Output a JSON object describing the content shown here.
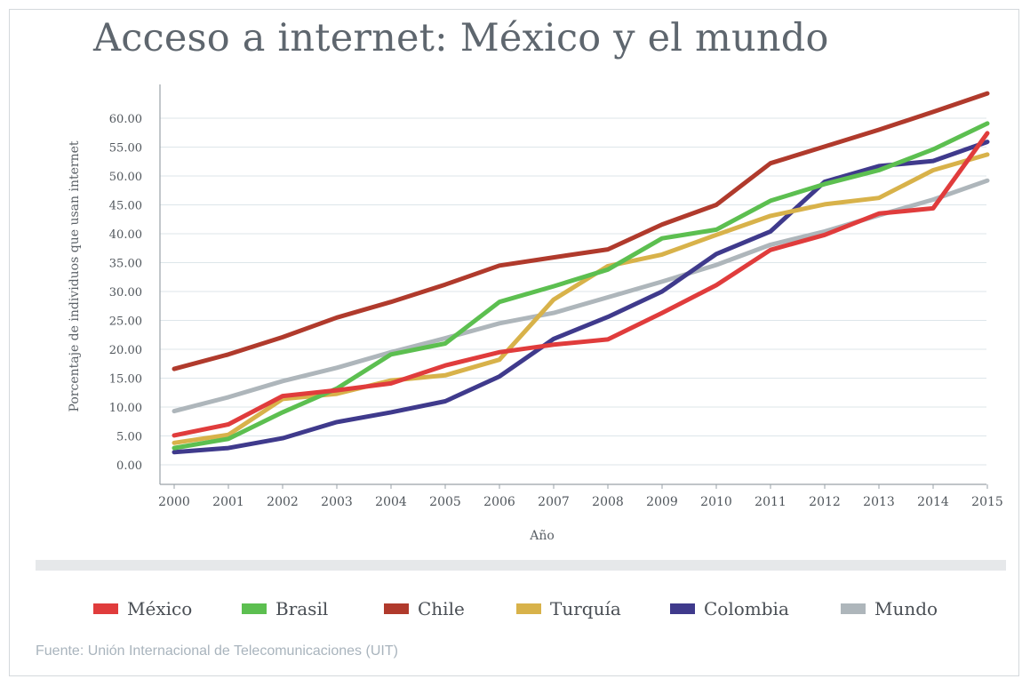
{
  "title": "Acceso a internet: México y el mundo",
  "source": "Fuente: Unión Internacional de Telecomunicaciones (UIT)",
  "chart_data": {
    "type": "line",
    "title": "Acceso a internet: México y el mundo",
    "xlabel": "Año",
    "ylabel": "Porcentaje de individuos que usan internet",
    "x": [
      "2000",
      "2001",
      "2002",
      "2003",
      "2004",
      "2005",
      "2006",
      "2007",
      "2008",
      "2009",
      "2010",
      "2011",
      "2012",
      "2013",
      "2014",
      "2015"
    ],
    "y_ticks": [
      "0.00",
      "5.00",
      "10.00",
      "15.00",
      "20.00",
      "25.00",
      "30.00",
      "35.00",
      "40.00",
      "45.00",
      "50.00",
      "55.00",
      "60.00"
    ],
    "ylim": [
      0,
      60
    ],
    "grid": "horizontal",
    "legend_position": "bottom",
    "series": [
      {
        "name": "México",
        "color": "#e03c3c",
        "values": [
          5.1,
          7.0,
          11.9,
          12.9,
          14.1,
          17.2,
          19.5,
          20.8,
          21.7,
          26.3,
          31.1,
          37.2,
          39.8,
          43.5,
          44.4,
          57.4
        ]
      },
      {
        "name": "Brasil",
        "color": "#5cbf50",
        "values": [
          2.9,
          4.5,
          9.1,
          13.2,
          19.1,
          21.0,
          28.2,
          30.9,
          33.8,
          39.2,
          40.7,
          45.7,
          48.6,
          51.0,
          54.6,
          59.1
        ]
      },
      {
        "name": "Chile",
        "color": "#b03a2c",
        "values": [
          16.6,
          19.1,
          22.1,
          25.5,
          28.2,
          31.2,
          34.5,
          35.9,
          37.3,
          41.6,
          45.0,
          52.2,
          55.1,
          58.0,
          61.1,
          64.3
        ]
      },
      {
        "name": "Turquía",
        "color": "#d8b24a",
        "values": [
          3.8,
          5.2,
          11.4,
          12.3,
          14.6,
          15.5,
          18.2,
          28.6,
          34.4,
          36.4,
          39.8,
          43.1,
          45.1,
          46.2,
          51.0,
          53.7
        ]
      },
      {
        "name": "Colombia",
        "color": "#3f3a8c",
        "values": [
          2.2,
          2.9,
          4.6,
          7.4,
          9.1,
          11.0,
          15.3,
          21.8,
          25.6,
          30.0,
          36.5,
          40.4,
          49.0,
          51.7,
          52.6,
          55.9
        ]
      },
      {
        "name": "Mundo",
        "color": "#aeb6bb",
        "values": [
          9.3,
          11.7,
          14.5,
          16.8,
          19.5,
          21.9,
          24.5,
          26.3,
          29.0,
          31.7,
          34.6,
          38.1,
          40.4,
          43.2,
          45.9,
          49.2
        ]
      }
    ]
  }
}
